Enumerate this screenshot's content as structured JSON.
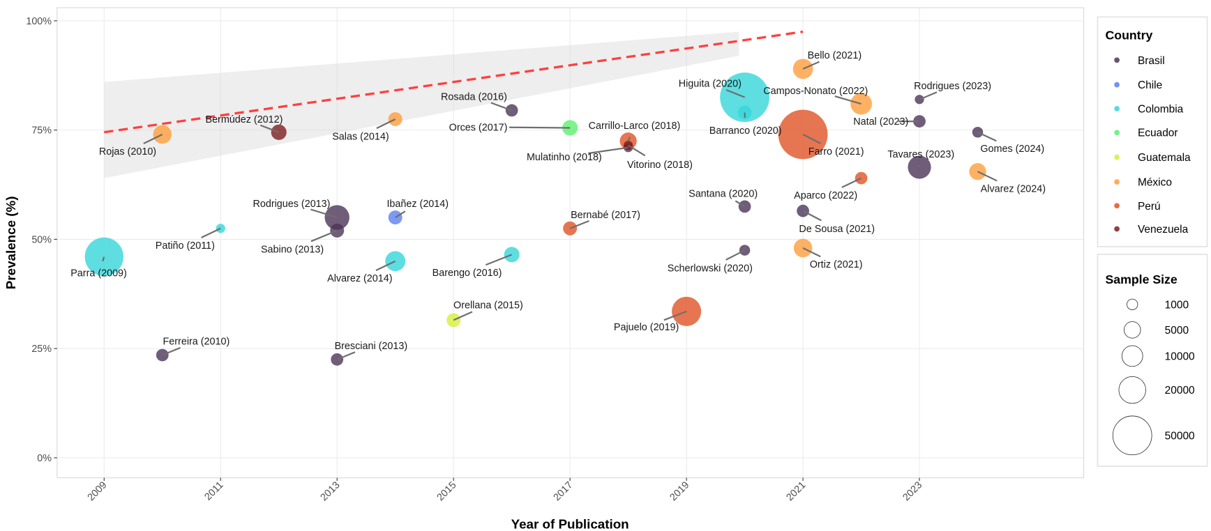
{
  "chart_data": {
    "type": "scatter",
    "title": "",
    "xlabel": "Year of Publication",
    "ylabel": "Prevalence (%)",
    "xlim": [
      2008.2,
      2025.8
    ],
    "ylim": [
      -4,
      104
    ],
    "x_ticks": [
      2009,
      2011,
      2013,
      2015,
      2017,
      2019,
      2021,
      2023
    ],
    "x_tick_labels": [
      "2009",
      "2011",
      "2013",
      "2015",
      "2017",
      "2019",
      "2021",
      "2023"
    ],
    "y_ticks": [
      0,
      25,
      50,
      75,
      100
    ],
    "y_tick_labels": [
      "0%",
      "25%",
      "50%",
      "75%",
      "100%"
    ],
    "grid": true,
    "legend_placement": "right",
    "country_legend": {
      "title": "Country",
      "items": [
        {
          "label": "Brasil",
          "color": "#4b3558"
        },
        {
          "label": "Chile",
          "color": "#5b7ff0"
        },
        {
          "label": "Colombia",
          "color": "#36d6d9"
        },
        {
          "label": "Ecuador",
          "color": "#5cf06e"
        },
        {
          "label": "Guatemala",
          "color": "#d6ef3c"
        },
        {
          "label": "México",
          "color": "#ff9d3c"
        },
        {
          "label": "Perú",
          "color": "#e05426"
        },
        {
          "label": "Venezuela",
          "color": "#7f1d1d"
        }
      ]
    },
    "size_legend": {
      "title": "Sample Size",
      "items": [
        {
          "label": "1000",
          "value": 1000
        },
        {
          "label": "5000",
          "value": 5000
        },
        {
          "label": "10000",
          "value": 10000
        },
        {
          "label": "20000",
          "value": 20000
        },
        {
          "label": "50000",
          "value": 50000
        }
      ]
    },
    "trend": {
      "color": "#ff4040",
      "x": [
        2009,
        2021
      ],
      "y": [
        74.5,
        97.5
      ],
      "band": {
        "x": [
          2009,
          2019.9
        ],
        "lower": [
          64,
          92
        ],
        "upper": [
          86,
          97.5
        ]
      }
    },
    "points": [
      {
        "label": "Parra (2009)",
        "year": 2009,
        "prevalence": 46,
        "country": "Colombia",
        "sample_size": 49000
      },
      {
        "label": "Rojas (2010)",
        "year": 2010,
        "prevalence": 74,
        "country": "México",
        "sample_size": 7100
      },
      {
        "label": "Ferreira (2010)",
        "year": 2010,
        "prevalence": 23.5,
        "country": "Brasil",
        "sample_size": 1800
      },
      {
        "label": "Patiño (2011)",
        "year": 2011,
        "prevalence": 52.5,
        "country": "Colombia",
        "sample_size": 440
      },
      {
        "label": "Bermúdez (2012)",
        "year": 2012,
        "prevalence": 74.5,
        "country": "Venezuela",
        "sample_size": 4000
      },
      {
        "label": "Rodrigues (2013)",
        "year": 2013,
        "prevalence": 55,
        "country": "Brasil",
        "sample_size": 16000
      },
      {
        "label": "Sabino (2013)",
        "year": 2013,
        "prevalence": 52,
        "country": "Brasil",
        "sample_size": 2800
      },
      {
        "label": "Bresciani (2013)",
        "year": 2013,
        "prevalence": 22.5,
        "country": "Brasil",
        "sample_size": 1800
      },
      {
        "label": "Ibañez (2014)",
        "year": 2014,
        "prevalence": 55,
        "country": "Chile",
        "sample_size": 2800
      },
      {
        "label": "Salas (2014)",
        "year": 2014,
        "prevalence": 77.5,
        "country": "México",
        "sample_size": 2800
      },
      {
        "label": "Alvarez (2014)",
        "year": 2014,
        "prevalence": 45,
        "country": "Colombia",
        "sample_size": 9000
      },
      {
        "label": "Orellana (2015)",
        "year": 2015,
        "prevalence": 31.5,
        "country": "Guatemala",
        "sample_size": 2800
      },
      {
        "label": "Rosada (2016)",
        "year": 2016,
        "prevalence": 79.5,
        "country": "Brasil",
        "sample_size": 1800
      },
      {
        "label": "Barengo (2016)",
        "year": 2016,
        "prevalence": 46.5,
        "country": "Colombia",
        "sample_size": 4000
      },
      {
        "label": "Orces (2017)",
        "year": 2017,
        "prevalence": 75.5,
        "country": "Ecuador",
        "sample_size": 4000
      },
      {
        "label": "Bernabé (2017)",
        "year": 2017,
        "prevalence": 52.5,
        "country": "Perú",
        "sample_size": 2800
      },
      {
        "label": "Carrillo-Larco (2018)",
        "year": 2018,
        "prevalence": 72.5,
        "country": "Perú",
        "sample_size": 5400
      },
      {
        "label": "Mulatinho (2018)",
        "year": 2018,
        "prevalence": 71,
        "country": "Brasil",
        "sample_size": 440
      },
      {
        "label": "Vitorino (2018)",
        "year": 2018,
        "prevalence": 71.5,
        "country": "Venezuela",
        "sample_size": 440
      },
      {
        "label": "Pajuelo (2019)",
        "year": 2019,
        "prevalence": 33.5,
        "country": "Perú",
        "sample_size": 25000
      },
      {
        "label": "Higuita (2020)",
        "year": 2020,
        "prevalence": 82.5,
        "country": "Colombia",
        "sample_size": 87000
      },
      {
        "label": "Barranco (2020)",
        "year": 2020,
        "prevalence": 79,
        "country": "Colombia",
        "sample_size": 2800
      },
      {
        "label": "Santana (2020)",
        "year": 2020,
        "prevalence": 57.5,
        "country": "Brasil",
        "sample_size": 1800
      },
      {
        "label": "Scherlowski (2020)",
        "year": 2020,
        "prevalence": 47.5,
        "country": "Brasil",
        "sample_size": 1000
      },
      {
        "label": "Bello (2021)",
        "year": 2021,
        "prevalence": 89,
        "country": "México",
        "sample_size": 9000
      },
      {
        "label": "Farro (2021)",
        "year": 2021,
        "prevalence": 74,
        "country": "Perú",
        "sample_size": 87000
      },
      {
        "label": "De Sousa (2021)",
        "year": 2021,
        "prevalence": 56.5,
        "country": "Brasil",
        "sample_size": 1800
      },
      {
        "label": "Ortiz (2021)",
        "year": 2021,
        "prevalence": 48,
        "country": "México",
        "sample_size": 7100
      },
      {
        "label": "Campos-Nonato (2022)",
        "year": 2022,
        "prevalence": 81,
        "country": "México",
        "sample_size": 11000
      },
      {
        "label": "Aparco (2022)",
        "year": 2022,
        "prevalence": 64,
        "country": "Perú",
        "sample_size": 1800
      },
      {
        "label": "Rodrigues (2023)",
        "year": 2023,
        "prevalence": 82,
        "country": "Brasil",
        "sample_size": 440
      },
      {
        "label": "Natal (2023)",
        "year": 2023,
        "prevalence": 77,
        "country": "Brasil",
        "sample_size": 1800
      },
      {
        "label": "Tavares (2023)",
        "year": 2023,
        "prevalence": 66.5,
        "country": "Brasil",
        "sample_size": 13400
      },
      {
        "label": "Gomes (2024)",
        "year": 2024,
        "prevalence": 74.5,
        "country": "Brasil",
        "sample_size": 1000
      },
      {
        "label": "Alvarez (2024)",
        "year": 2024,
        "prevalence": 65.5,
        "country": "México",
        "sample_size": 5400
      }
    ]
  }
}
